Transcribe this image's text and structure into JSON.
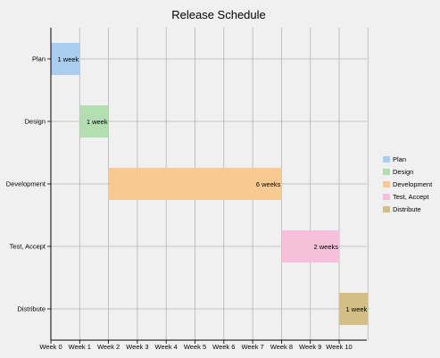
{
  "chart_data": {
    "type": "bar",
    "orientation": "horizontal-gantt",
    "title": "Release Schedule",
    "xlabel": "",
    "ylabel": "",
    "x_ticks": [
      "Week 0",
      "Week 1",
      "Week 2",
      "Week 3",
      "Week 4",
      "Week 5",
      "Week 6",
      "Week 7",
      "Week 8",
      "Week 9",
      "Week 10"
    ],
    "xlim": [
      0,
      11
    ],
    "grid": true,
    "legend_position": "right",
    "categories": [
      "Plan",
      "Design",
      "Development",
      "Test, Accept",
      "Distribute"
    ],
    "tasks": [
      {
        "name": "Plan",
        "start": 0,
        "duration": 1,
        "label": "1 week",
        "color": "#a8cdee"
      },
      {
        "name": "Design",
        "start": 1,
        "duration": 1,
        "label": "1 week",
        "color": "#b2deb0"
      },
      {
        "name": "Development",
        "start": 2,
        "duration": 6,
        "label": "6 weeks",
        "color": "#f8c990"
      },
      {
        "name": "Test, Accept",
        "start": 8,
        "duration": 2,
        "label": "2 weeks",
        "color": "#f6c0da"
      },
      {
        "name": "Distribute",
        "start": 10,
        "duration": 1,
        "label": "1 week",
        "color": "#d3bf86"
      }
    ],
    "legend": [
      {
        "label": "Plan",
        "color": "#a8cdee"
      },
      {
        "label": "Design",
        "color": "#b2deb0"
      },
      {
        "label": "Development",
        "color": "#f8c990"
      },
      {
        "label": "Test, Accept",
        "color": "#f6c0da"
      },
      {
        "label": "Distribute",
        "color": "#d3bf86"
      }
    ]
  }
}
